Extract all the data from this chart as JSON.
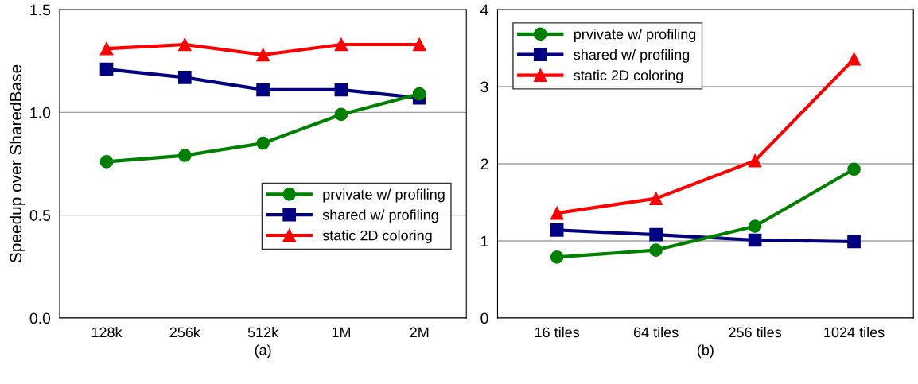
{
  "chart_data": [
    {
      "type": "line",
      "xlabel": "(a)",
      "ylabel": "Speedup over SharedBase",
      "categories": [
        "128k",
        "256k",
        "512k",
        "1M",
        "2M"
      ],
      "ylim": [
        0,
        1.5
      ],
      "yticks": [
        {
          "value": 0,
          "label": "0.0"
        },
        {
          "value": 0.5,
          "label": "0.5"
        },
        {
          "value": 1,
          "label": "1.0"
        },
        {
          "value": 1.5,
          "label": "1.5"
        }
      ],
      "grid": "y",
      "legend": "bottom right",
      "series": [
        {
          "name": "prvivate w/ profiling",
          "color": "#008000",
          "marker": "circle",
          "values": [
            0.76,
            0.79,
            0.85,
            0.99,
            1.09
          ]
        },
        {
          "name": "shared w/ profiling",
          "color": "#000080",
          "marker": "square",
          "values": [
            1.21,
            1.17,
            1.11,
            1.11,
            1.07
          ]
        },
        {
          "name": "static 2D coloring",
          "color": "#ff0000",
          "marker": "triangle",
          "values": [
            1.31,
            1.33,
            1.28,
            1.33,
            1.33
          ]
        }
      ]
    },
    {
      "type": "line",
      "xlabel": "(b)",
      "categories": [
        "16 tiles",
        "64 tiles",
        "256 tiles",
        "1024 tiles"
      ],
      "ylim": [
        0,
        4
      ],
      "yticks": [
        0,
        1,
        2,
        3,
        4
      ],
      "grid": "y",
      "legend": "top left",
      "series": [
        {
          "name": "prvivate w/ profiling",
          "color": "#008000",
          "marker": "circle",
          "values": [
            0.79,
            0.88,
            1.19,
            1.93
          ]
        },
        {
          "name": "shared w/ profiling",
          "color": "#000080",
          "marker": "square",
          "values": [
            1.14,
            1.08,
            1.01,
            0.99
          ]
        },
        {
          "name": "static 2D coloring",
          "color": "#ff0000",
          "marker": "triangle",
          "values": [
            1.36,
            1.55,
            2.04,
            3.36
          ]
        }
      ]
    }
  ]
}
